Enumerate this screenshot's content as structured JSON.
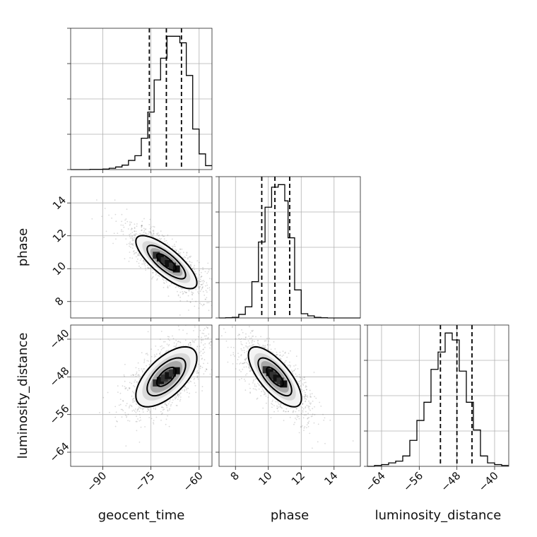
{
  "chart_data": {
    "type": "corner",
    "parameters": [
      "geocent_time",
      "phase",
      "luminosity_distance"
    ],
    "axis_labels": {
      "geocent_time": "geocent_time",
      "phase": "phase",
      "luminosity_distance": "luminosity_distance"
    },
    "ranges": {
      "geocent_time": [
        -100,
        -56
      ],
      "phase": [
        7,
        15.6
      ],
      "luminosity_distance": [
        -67,
        -37
      ]
    },
    "ticks": {
      "geocent_time": [
        -90,
        -75,
        -60
      ],
      "phase": [
        8,
        10,
        12,
        14
      ],
      "luminosity_distance": [
        -64,
        -56,
        -48,
        -40
      ]
    },
    "tick_labels": {
      "geocent_time": [
        "−90",
        "−75",
        "−60"
      ],
      "phase": [
        "8",
        "10",
        "12",
        "14"
      ],
      "luminosity_distance": [
        "−64",
        "−56",
        "−48",
        "−40"
      ]
    },
    "quantiles": {
      "geocent_time": [
        -75.5,
        -70.2,
        -65.5
      ],
      "phase": [
        9.6,
        10.4,
        11.3
      ],
      "luminosity_distance": [
        -51.5,
        -48.0,
        -44.8
      ]
    },
    "histograms": {
      "geocent_time": {
        "bin_edges": [
          -100,
          -98,
          -96,
          -94,
          -92,
          -90,
          -88,
          -86,
          -84,
          -82,
          -80,
          -78,
          -76,
          -74,
          -72,
          -70,
          -68,
          -66,
          -64,
          -62,
          -60,
          -58,
          -56
        ],
        "counts": [
          0,
          0,
          0,
          1,
          1,
          2,
          5,
          10,
          17,
          35,
          53,
          120,
          220,
          343,
          426,
          510,
          510,
          485,
          360,
          155,
          60,
          15
        ]
      },
      "phase": {
        "bin_edges": [
          7.0,
          7.4,
          7.8,
          8.2,
          8.6,
          9.0,
          9.4,
          9.8,
          10.2,
          10.6,
          11.0,
          11.2,
          11.6,
          12.0,
          12.4,
          12.8,
          13.2,
          13.6,
          14.0,
          14.4,
          14.8,
          15.2,
          15.6
        ],
        "counts": [
          0,
          1,
          3,
          17,
          53,
          172,
          360,
          525,
          620,
          632,
          555,
          380,
          133,
          20,
          10,
          3,
          1,
          0,
          0,
          0,
          0,
          0
        ]
      },
      "luminosity_distance": {
        "bin_edges": [
          -67,
          -65.5,
          -64,
          -62.5,
          -61,
          -59.5,
          -58,
          -56.5,
          -55,
          -53.5,
          -52,
          -50.5,
          -49,
          -47.5,
          -46,
          -44.5,
          -43,
          -41.5,
          -40,
          -38.5,
          -37
        ],
        "counts": [
          0,
          5,
          10,
          20,
          30,
          60,
          150,
          265,
          370,
          560,
          660,
          770,
          730,
          550,
          370,
          210,
          60,
          20,
          10,
          5
        ]
      }
    },
    "correlations": [
      {
        "x": "geocent_time",
        "y": "phase",
        "rho": -0.78
      },
      {
        "x": "geocent_time",
        "y": "luminosity_distance",
        "rho": 0.62
      },
      {
        "x": "phase",
        "y": "luminosity_distance",
        "rho": -0.72
      }
    ],
    "grid": true,
    "legend": "none"
  }
}
